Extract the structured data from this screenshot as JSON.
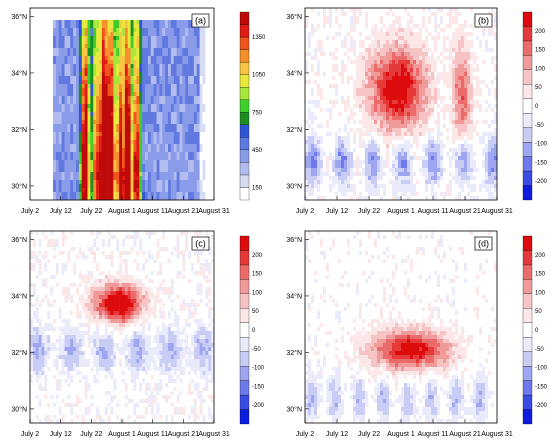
{
  "chart_data": [
    {
      "type": "heatmap",
      "panel_label": "(a)",
      "x_ticks": [
        "July 2",
        "July 12",
        "July 22",
        "August 1",
        "August 11",
        "August 21",
        "August 31"
      ],
      "y_ticks": [
        "30°N",
        "32°N",
        "34°N",
        "36°N"
      ],
      "colorbar_ticks": [
        "150",
        "450",
        "750",
        "1050",
        "1350"
      ],
      "colorbar_colors": [
        "#ffffff",
        "#d8dcf3",
        "#b3bcef",
        "#8a9be9",
        "#5f79e0",
        "#2f54d6",
        "#1d8f22",
        "#3fcf2c",
        "#a8e83a",
        "#e9e93d",
        "#f8c544",
        "#f5902c",
        "#f0551e",
        "#e01b14",
        "#bf0a0a"
      ]
    },
    {
      "type": "heatmap",
      "panel_label": "(b)",
      "x_ticks": [
        "July 2",
        "July 12",
        "July 22",
        "August 1",
        "August 11",
        "August 21",
        "August 31"
      ],
      "y_ticks": [
        "30°N",
        "32°N",
        "34°N",
        "36°N"
      ],
      "colorbar_ticks": [
        "-200",
        "-150",
        "-100",
        "-50",
        "0",
        "50",
        "100",
        "150",
        "200"
      ],
      "colorbar_colors": [
        "#0b1de0",
        "#3a4be6",
        "#6d79ec",
        "#9ea6f1",
        "#c9cdf6",
        "#e9ebfb",
        "#ffffff",
        "#fbe7e7",
        "#f6c4c4",
        "#f19a9a",
        "#eb6b6b",
        "#e63a3a",
        "#dd0b0b"
      ]
    },
    {
      "type": "heatmap",
      "panel_label": "(c)",
      "x_ticks": [
        "July 2",
        "July 12",
        "July 22",
        "August 1",
        "August 11",
        "August 21",
        "August 31"
      ],
      "y_ticks": [
        "30°N",
        "32°N",
        "34°N",
        "36°N"
      ],
      "colorbar_ticks": [
        "-200",
        "-150",
        "-100",
        "-50",
        "0",
        "50",
        "100",
        "150",
        "200"
      ],
      "colorbar_colors": [
        "#0b1de0",
        "#3a4be6",
        "#6d79ec",
        "#9ea6f1",
        "#c9cdf6",
        "#e9ebfb",
        "#ffffff",
        "#fbe7e7",
        "#f6c4c4",
        "#f19a9a",
        "#eb6b6b",
        "#e63a3a",
        "#dd0b0b"
      ]
    },
    {
      "type": "heatmap",
      "panel_label": "(d)",
      "x_ticks": [
        "July 2",
        "July 12",
        "July 22",
        "August 1",
        "August 11",
        "August 21",
        "August 31"
      ],
      "y_ticks": [
        "30°N",
        "32°N",
        "34°N",
        "36°N"
      ],
      "colorbar_ticks": [
        "-200",
        "-150",
        "-100",
        "-50",
        "0",
        "50",
        "100",
        "150",
        "200"
      ],
      "colorbar_colors": [
        "#0b1de0",
        "#3a4be6",
        "#6d79ec",
        "#9ea6f1",
        "#c9cdf6",
        "#e9ebfb",
        "#ffffff",
        "#fbe7e7",
        "#f6c4c4",
        "#f19a9a",
        "#eb6b6b",
        "#e63a3a",
        "#dd0b0b"
      ]
    }
  ]
}
